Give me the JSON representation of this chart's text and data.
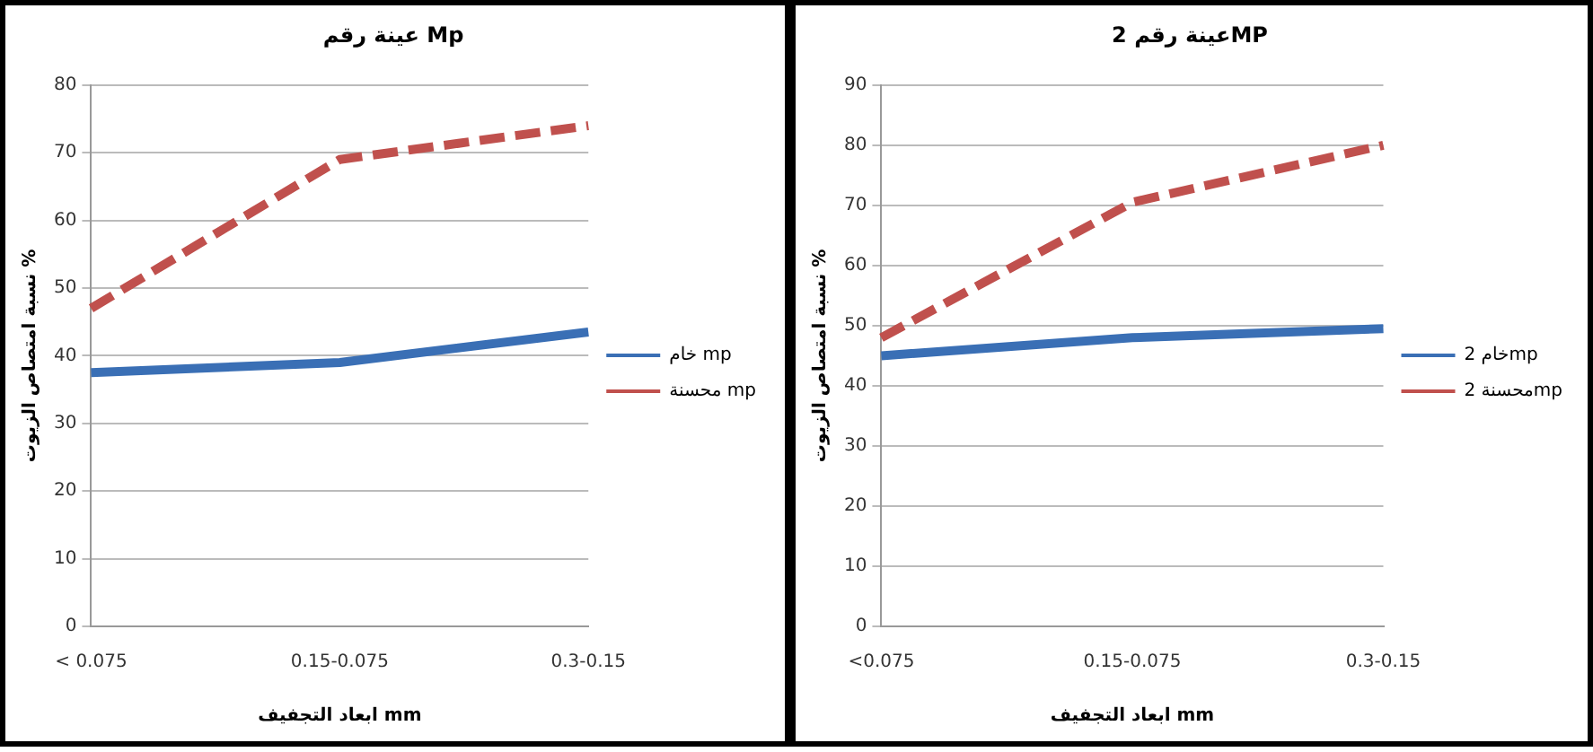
{
  "chart_data": [
    {
      "type": "line",
      "title": "عينة رقم Mp",
      "xlabel": "ابعاد التجفيف mm",
      "ylabel": "نسبة امتصاص الزيوت %",
      "categories": [
        "< 0.075",
        "0.15-0.075",
        "0.3-0.15"
      ],
      "series": [
        {
          "name": "خام mp",
          "color": "#3a6fb5",
          "values": [
            37.5,
            39,
            43.5
          ],
          "line_style": "solid"
        },
        {
          "name": "محسنة mp",
          "color": "#c0504d",
          "values": [
            47,
            69,
            74
          ],
          "line_style": "dashed"
        }
      ],
      "ylim": [
        0,
        80
      ],
      "yticks": [
        0,
        10,
        20,
        30,
        40,
        50,
        60,
        70,
        80
      ],
      "grid": "y",
      "legend": "right",
      "marker": "none"
    },
    {
      "type": "line",
      "title": "عينة رقم 2MP",
      "xlabel": "ابعاد التجفيف mm",
      "ylabel": "نسبة امتصاص الزيوت %",
      "categories": [
        "<0.075",
        "0.15-0.075",
        "0.3-0.15"
      ],
      "series": [
        {
          "name": "خام 2mp",
          "color": "#3a6fb5",
          "values": [
            45,
            48,
            49.5
          ],
          "line_style": "solid"
        },
        {
          "name": "محسنة 2mp",
          "color": "#c0504d",
          "values": [
            48,
            70.5,
            80
          ],
          "line_style": "dashed"
        }
      ],
      "ylim": [
        0,
        90
      ],
      "yticks": [
        0,
        10,
        20,
        30,
        40,
        50,
        60,
        70,
        80,
        90
      ],
      "grid": "y",
      "legend": "right",
      "marker": "none"
    }
  ]
}
